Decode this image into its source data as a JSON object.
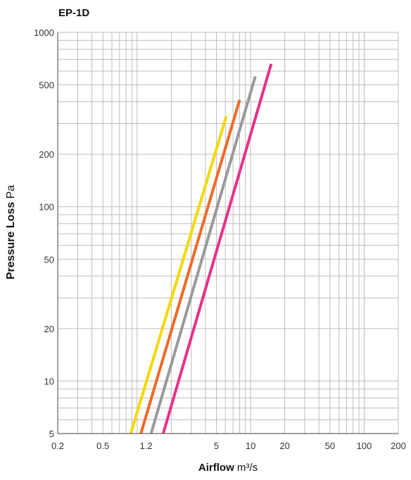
{
  "chart_data": {
    "type": "line",
    "title": "EP-1D",
    "xlabel": {
      "bold": "Airflow",
      "unit": "m³/s"
    },
    "ylabel": {
      "bold": "Pressure Loss",
      "unit": "Pa"
    },
    "x_scale": "log",
    "y_scale": "log",
    "xlim": [
      0.2,
      200
    ],
    "ylim": [
      5,
      1000
    ],
    "grid": true,
    "xticks": [
      0.2,
      0.5,
      1.2,
      5,
      10,
      20,
      50,
      100,
      200
    ],
    "xtick_labels": [
      "0.2",
      "0.5",
      "1.2",
      "5",
      "10",
      "20",
      "50",
      "100",
      "200"
    ],
    "yticks": [
      5,
      10,
      20,
      50,
      100,
      200,
      500,
      1000
    ],
    "ytick_labels": [
      "5",
      "10",
      "20",
      "50",
      "100",
      "200",
      "500",
      "1000"
    ],
    "series": [
      {
        "color": "#f5d800",
        "x": [
          0.88,
          6.1
        ],
        "y": [
          5,
          330
        ]
      },
      {
        "color": "#ef6a25",
        "x": [
          1.08,
          8.0
        ],
        "y": [
          5,
          410
        ]
      },
      {
        "color": "#999999",
        "x": [
          1.33,
          11.0
        ],
        "y": [
          5,
          560
        ]
      },
      {
        "color": "#e8308a",
        "x": [
          1.7,
          15.2
        ],
        "y": [
          5,
          660
        ]
      }
    ]
  }
}
